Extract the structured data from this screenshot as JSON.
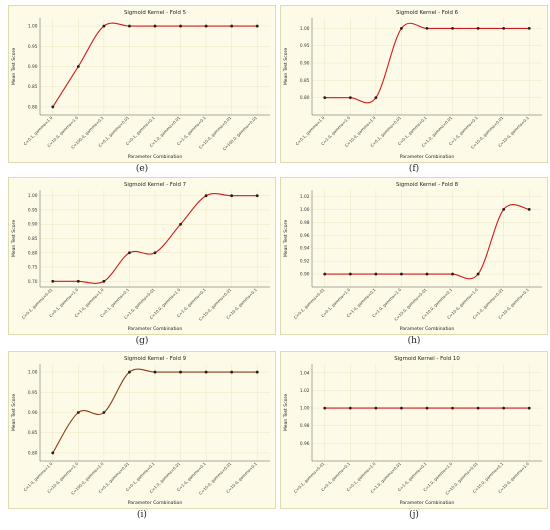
{
  "chart_data": [
    {
      "type": "line",
      "title": "Sigmoid Kernel - Fold 5",
      "xlabel": "Parameter Combination",
      "ylabel": "Mean Test Score",
      "categories": [
        "C=0.1, gamma=1.0",
        "C=10.0, gamma=1.0",
        "C=100.0, gamma=0.1",
        "C=0.1, gamma=0.01",
        "C=0.1, gamma=0.1",
        "C=1.0, gamma=0.01",
        "C=1.0, gamma=0.1",
        "C=10.0, gamma=0.01",
        "C=100.0, gamma=0.01"
      ],
      "values": [
        0.8,
        0.9,
        1.0,
        1.0,
        1.0,
        1.0,
        1.0,
        1.0,
        1.0
      ],
      "ylim": [
        0.78,
        1.02
      ],
      "yticks": [
        0.8,
        0.85,
        0.9,
        0.95,
        1.0
      ],
      "color": "#d11a1a",
      "grid": true,
      "panel_label": "(e)"
    },
    {
      "type": "line",
      "title": "Sigmoid Kernel - Fold 6",
      "xlabel": "Parameter Combination",
      "ylabel": "Mean Test Score",
      "categories": [
        "C=0.1, gamma=1.0",
        "C=1.0, gamma=1.0",
        "C=10.0, gamma=1.0",
        "C=0.1, gamma=0.01",
        "C=0.1, gamma=0.1",
        "C=1.0, gamma=0.01",
        "C=1.0, gamma=0.1",
        "C=10.0, gamma=0.01",
        "C=10.0, gamma=0.1"
      ],
      "values": [
        0.8,
        0.8,
        0.8,
        1.0,
        1.0,
        1.0,
        1.0,
        1.0,
        1.0
      ],
      "ylim": [
        0.75,
        1.03
      ],
      "yticks": [
        0.8,
        0.85,
        0.9,
        0.95,
        1.0
      ],
      "color": "#d11a1a",
      "grid": true,
      "panel_label": "(f)"
    },
    {
      "type": "line",
      "title": "Sigmoid Kernel - Fold 7",
      "xlabel": "Parameter Combination",
      "ylabel": "Mean Test Score",
      "categories": [
        "C=0.1, gamma=0.01",
        "C=0.1, gamma=1.0",
        "C=1.0, gamma=1.0",
        "C=0.1, gamma=0.1",
        "C=1.0, gamma=0.01",
        "C=10.0, gamma=1.0",
        "C=1.0, gamma=0.1",
        "C=10.0, gamma=0.01",
        "C=10.0, gamma=0.1"
      ],
      "values": [
        0.7,
        0.7,
        0.7,
        0.8,
        0.8,
        0.9,
        1.0,
        1.0,
        1.0
      ],
      "ylim": [
        0.68,
        1.02
      ],
      "yticks": [
        0.7,
        0.75,
        0.8,
        0.85,
        0.9,
        0.95,
        1.0
      ],
      "color": "#d11a1a",
      "grid": true,
      "panel_label": "(g)"
    },
    {
      "type": "line",
      "title": "Sigmoid Kernel - Fold 8",
      "xlabel": "Parameter Combination",
      "ylabel": "Mean Test Score",
      "categories": [
        "C=0.1, gamma=0.01",
        "C=0.1, gamma=1.0",
        "C=1.0, gamma=0.1",
        "C=1.0, gamma=1.0",
        "C=10.0, gamma=0.01",
        "C=10.0, gamma=0.1",
        "C=10.0, gamma=1.0",
        "C=1.0, gamma=0.01",
        "C=10.0, gamma=0.1"
      ],
      "values": [
        0.9,
        0.9,
        0.9,
        0.9,
        0.9,
        0.9,
        0.9,
        1.0,
        1.0
      ],
      "ylim": [
        0.88,
        1.03
      ],
      "yticks": [
        0.9,
        0.92,
        0.94,
        0.96,
        0.98,
        1.0,
        1.02
      ],
      "color": "#d11a1a",
      "grid": true,
      "panel_label": "(h)"
    },
    {
      "type": "line",
      "title": "Sigmoid Kernel - Fold 9",
      "xlabel": "Parameter Combination",
      "ylabel": "Mean Test Score",
      "categories": [
        "C=1.0, gamma=1.0",
        "C=10.0, gamma=1.0",
        "C=100.0, gamma=1.0",
        "C=0.1, gamma=0.01",
        "C=0.1, gamma=0.1",
        "C=1.0, gamma=0.01",
        "C=1.0, gamma=0.1",
        "C=10.0, gamma=0.01",
        "C=10.0, gamma=0.1"
      ],
      "values": [
        0.8,
        0.9,
        0.9,
        1.0,
        1.0,
        1.0,
        1.0,
        1.0,
        1.0
      ],
      "ylim": [
        0.78,
        1.02
      ],
      "yticks": [
        0.8,
        0.85,
        0.9,
        0.95,
        1.0
      ],
      "color": "#8a3a18",
      "grid": true,
      "panel_label": "(i)"
    },
    {
      "type": "line",
      "title": "Sigmoid Kernel - Fold 10",
      "xlabel": "Parameter Combination",
      "ylabel": "Mean Test Score",
      "categories": [
        "C=0.1, gamma=0.01",
        "C=0.1, gamma=0.1",
        "C=0.1, gamma=1.0",
        "C=1.0, gamma=0.01",
        "C=1.0, gamma=0.1",
        "C=1.0, gamma=1.0",
        "C=10.0, gamma=0.01",
        "C=10.0, gamma=0.1",
        "C=10.0, gamma=1.0"
      ],
      "values": [
        1.0,
        1.0,
        1.0,
        1.0,
        1.0,
        1.0,
        1.0,
        1.0,
        1.0
      ],
      "ylim": [
        0.94,
        1.05
      ],
      "yticks": [
        0.96,
        0.98,
        1.0,
        1.02,
        1.04
      ],
      "color": "#d11a1a",
      "grid": true,
      "panel_label": "(j)"
    }
  ]
}
